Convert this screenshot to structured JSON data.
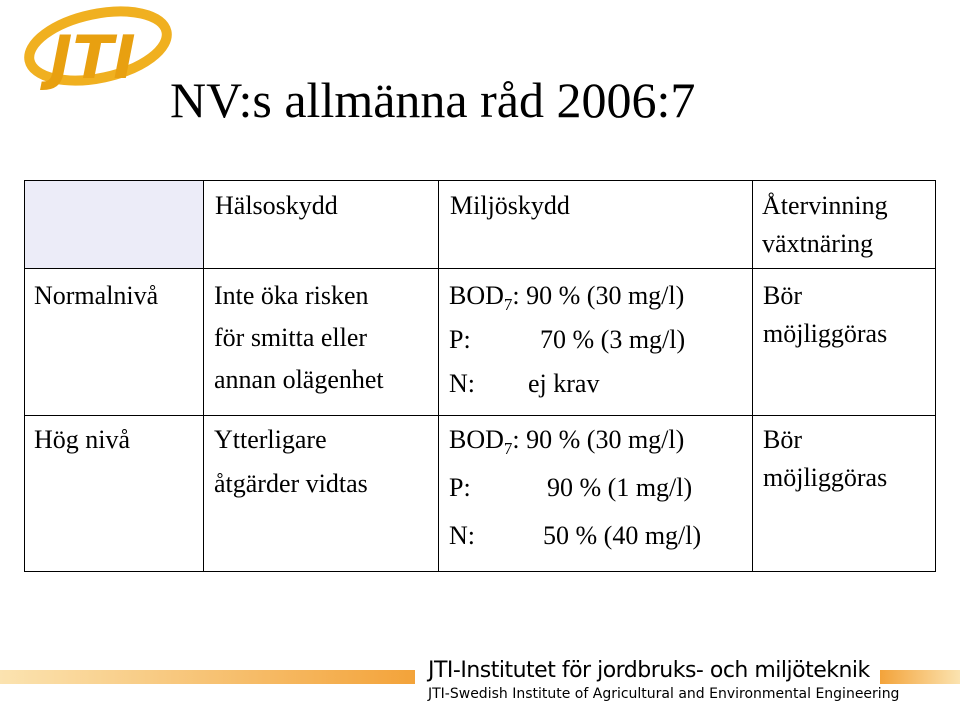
{
  "header": {
    "logo": "JTI",
    "title": "NV:s allmänna råd 2006:7"
  },
  "table": {
    "columns": [
      [
        "Hälsoskydd"
      ],
      [
        "Miljöskydd"
      ],
      [
        "Återvinning",
        "växtnäring"
      ]
    ],
    "rows": [
      {
        "label": "Normalnivå",
        "halsoskydd": [
          "Inte öka risken",
          "för smitta eller",
          "annan olägenhet"
        ],
        "miljoskydd": [
          {
            "param": "BOD",
            "sub": "7",
            "value": ": 90 % (30 mg/l)"
          },
          {
            "param": "P:",
            "value": "70 % (3 mg/l)"
          },
          {
            "param": "N:",
            "value": "ej krav"
          }
        ],
        "atervinning": [
          "Bör",
          "möjliggöras"
        ]
      },
      {
        "label": "Hög nivå",
        "halsoskydd": [
          "Ytterligare",
          "åtgärder vidtas"
        ],
        "miljoskydd": [
          {
            "param": "BOD",
            "sub": "7",
            "value": ": 90 % (30 mg/l)"
          },
          {
            "param": "P:",
            "value": "90 % (1 mg/l)"
          },
          {
            "param": "N:",
            "value": "50 % (40 mg/l)"
          }
        ],
        "atervinning": [
          "Bör",
          "möjliggöras"
        ]
      }
    ]
  },
  "footer": {
    "line1": "JTI-Institutet för jordbruks- och miljöteknik",
    "line2": "JTI-Swedish Institute of Agricultural and Environmental Engineering"
  }
}
